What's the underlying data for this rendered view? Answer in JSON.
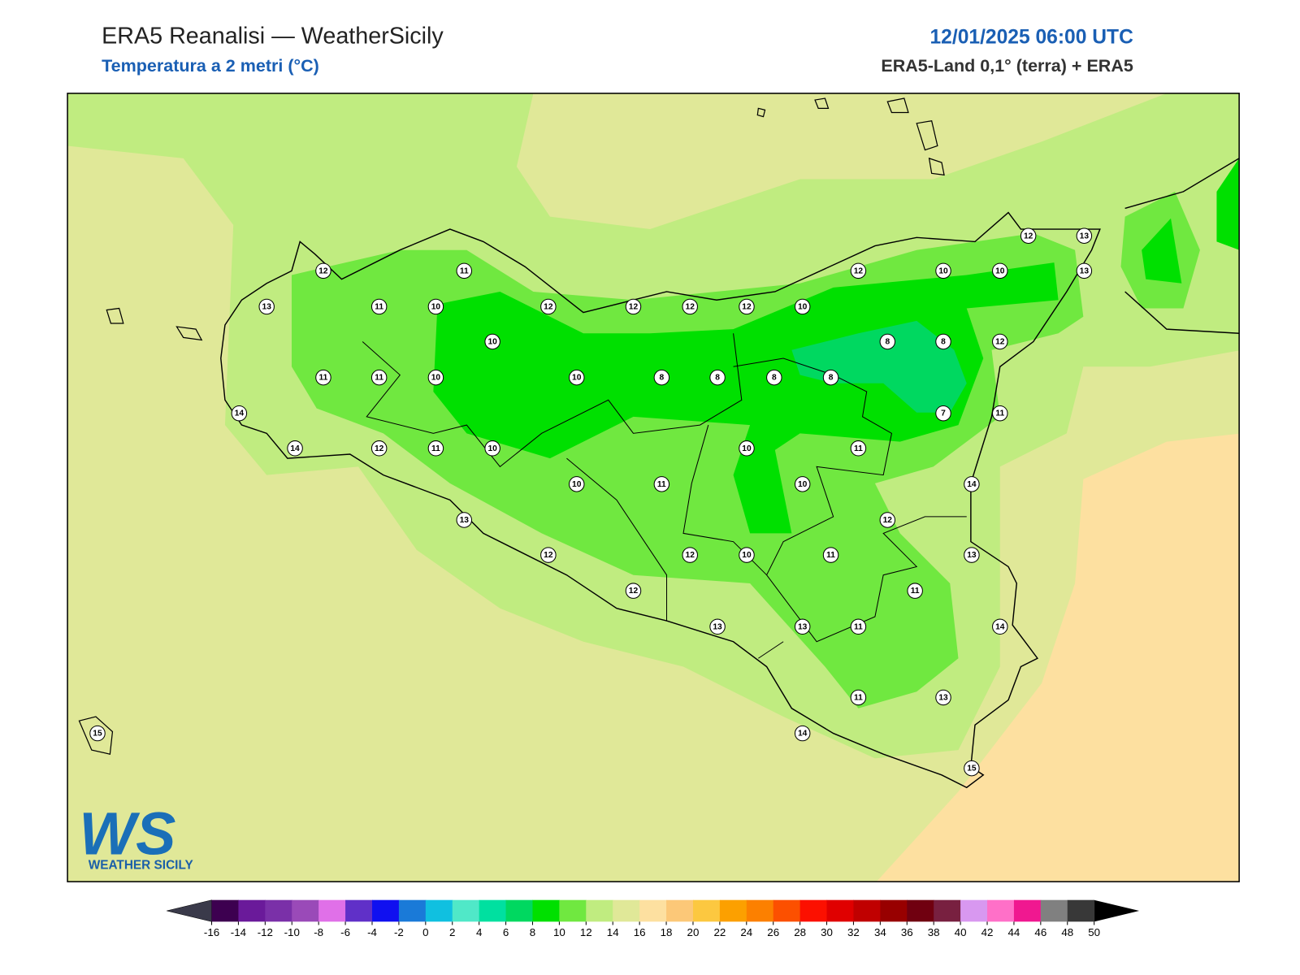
{
  "header": {
    "title": "ERA5 Reanalisi — WeatherSicily",
    "subtitle": "Temperatura a 2 metri (°C)",
    "datetime": "12/01/2025 06:00 UTC",
    "source": "ERA5-Land 0,1° (terra) + ERA5"
  },
  "stations": [
    12,
    11,
    13,
    11,
    10,
    12,
    12,
    12,
    12,
    10,
    12,
    10,
    10,
    12,
    13,
    13,
    10,
    8,
    8,
    12,
    11,
    11,
    10,
    10,
    8,
    8,
    8,
    8,
    7,
    11,
    14,
    14,
    12,
    11,
    10,
    10,
    11,
    10,
    11,
    10,
    14,
    13,
    12,
    12,
    12,
    10,
    11,
    13,
    12,
    11,
    13,
    13,
    11,
    14,
    11,
    13,
    14,
    15,
    15
  ],
  "colorbar": {
    "ticks": [
      -16,
      -14,
      -12,
      -10,
      -8,
      -6,
      -4,
      -2,
      0,
      2,
      4,
      6,
      8,
      10,
      12,
      14,
      16,
      18,
      20,
      22,
      24,
      26,
      28,
      30,
      32,
      34,
      36,
      38,
      40,
      42,
      44,
      46,
      48,
      50
    ],
    "colors": [
      "#3d0050",
      "#6a1a9a",
      "#7a30a8",
      "#9a4ab8",
      "#e070e8",
      "#6030c8",
      "#1010f0",
      "#1a7ad8",
      "#10c0e0",
      "#50e8c8",
      "#00e0a0",
      "#00d860",
      "#00e000",
      "#70e840",
      "#c0ec80",
      "#e0e898",
      "#fde0a0",
      "#fcc878",
      "#fcc840",
      "#fca000",
      "#fc8000",
      "#fc5000",
      "#fc1000",
      "#e00000",
      "#c00000",
      "#980000",
      "#700010",
      "#782040",
      "#d898f0",
      "#ff70c8",
      "#f01890",
      "#808080",
      "#383838"
    ],
    "under_color": "#3a3a4a",
    "over_color": "#000000"
  },
  "logo": {
    "initials": "WS",
    "text": "WEATHER SICILY"
  }
}
